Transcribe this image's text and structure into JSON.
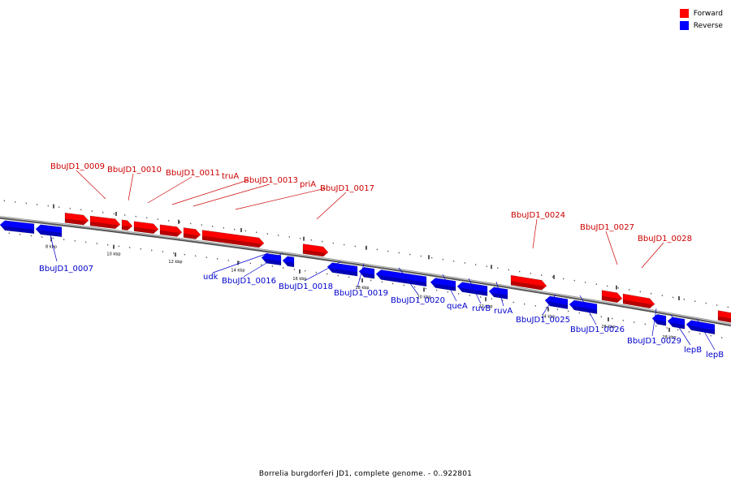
{
  "legend": {
    "forward_label": "Forward",
    "reverse_label": "Reverse",
    "forward_color": "#ff0000",
    "reverse_color": "#0000ff"
  },
  "caption": "Borrelia burgdorferi JD1, complete genome. - 0..922801",
  "scale_labels": [
    "8 kbp",
    "10 kbp",
    "12 kbp",
    "14 kbp",
    "16 kbp",
    "18 kbp",
    "20 kbp",
    "22 kbp",
    "24 kbp",
    "26 kbp",
    "28 kbp"
  ],
  "forward_genes": [
    "BbuJD1_0009",
    "BbuJD1_0010",
    "BbuJD1_0011",
    "truA",
    "BbuJD1_0013",
    "priA",
    "BbuJD1_0017",
    "BbuJD1_0024",
    "BbuJD1_0027",
    "BbuJD1_0028"
  ],
  "reverse_genes": [
    "BbuJD1_0007",
    "udk",
    "BbuJD1_0016",
    "BbuJD1_0018",
    "BbuJD1_0019",
    "BbuJD1_0020",
    "queA",
    "ruvB",
    "ruvA",
    "BbuJD1_0025",
    "BbuJD1_0026",
    "BbuJD1_0029",
    "lepB",
    "lepB"
  ]
}
